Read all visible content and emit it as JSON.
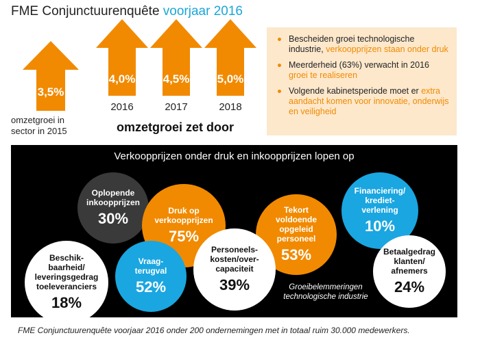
{
  "header": {
    "title_main": "FME Conjunctuurenquête",
    "title_accent": "voorjaar 2016"
  },
  "growth": {
    "current": {
      "value": "3,5%",
      "caption": "omzetgroei in sector in 2015"
    },
    "forecasts": [
      {
        "value": "4,0%",
        "year": "2016"
      },
      {
        "value": "4,5%",
        "year": "2017"
      },
      {
        "value": "5,0%",
        "year": "2018"
      }
    ],
    "headline": "omzetgroei zet door"
  },
  "infobox": {
    "items": [
      {
        "text": "Bescheiden groei technologische industrie, ",
        "highlight": "verkoopprijzen staan onder druk"
      },
      {
        "text": "Meerderheid (63%) verwacht in 2016 ",
        "highlight": "groei te realiseren"
      },
      {
        "text": "Volgende kabinetsperiode moet er ",
        "highlight": "extra aandacht komen voor innovatie, onderwijs en veiligheid"
      }
    ]
  },
  "panel": {
    "title": "Verkoopprijzen onder druk en inkoopprijzen lopen op",
    "bubbles": [
      {
        "label": "Oplopende inkoopprijzen",
        "value": "30%"
      },
      {
        "label": "Druk op verkoopprijzen",
        "value": "75%"
      },
      {
        "label": "Tekort voldoende opgeleid personeel",
        "value": "53%"
      },
      {
        "label": "Financiering/ krediet- verlening",
        "value": "10%"
      },
      {
        "label": "Beschik- baarheid/ leveringsgedrag toeleveranciers",
        "value": "18%"
      },
      {
        "label": "Vraag- terugval",
        "value": "52%"
      },
      {
        "label": "Personeels- kosten/over- capaciteit",
        "value": "39%"
      },
      {
        "label": "Betaalgedrag klanten/ afnemers",
        "value": "24%"
      }
    ],
    "note": "Groeibelemmeringen technologische industrie"
  },
  "footer": "FME Conjunctuurenquête voorjaar 2016 onder 200 ondernemingen met in totaal ruim 30.000 medewerkers.",
  "colors": {
    "orange": "#f18a00",
    "blue": "#1aa6e0",
    "dark": "#3a3a3a",
    "box": "#fde8cc"
  }
}
